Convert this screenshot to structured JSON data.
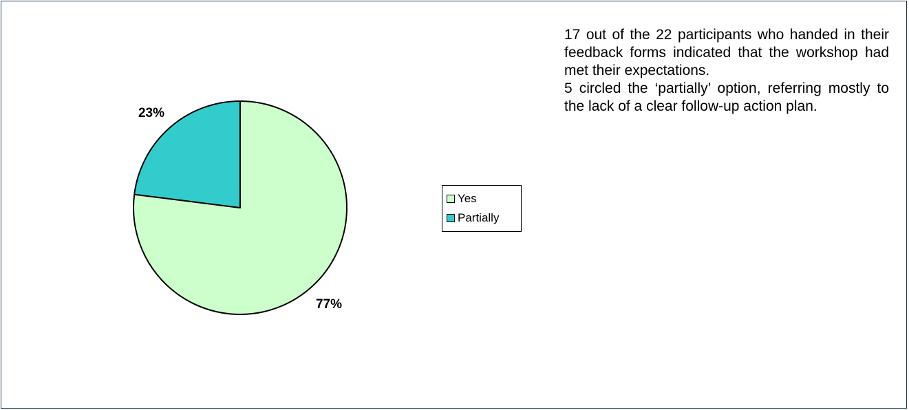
{
  "chart_data": {
    "type": "pie",
    "categories": [
      "Yes",
      "Partially"
    ],
    "values": [
      77,
      23
    ],
    "labels": [
      "77%",
      "23%"
    ],
    "colors": [
      "#ccffcc",
      "#33cccc"
    ],
    "legend": {
      "placement": "right",
      "entries": [
        "Yes",
        "Partially"
      ]
    }
  },
  "note": {
    "paragraph1": "17 out of the 22 participants who handed in their feedback forms indicated that the workshop had met their expectations.",
    "paragraph2": "5 circled the ‘partially’ option, referring mostly to the lack of a clear follow-up action plan."
  }
}
